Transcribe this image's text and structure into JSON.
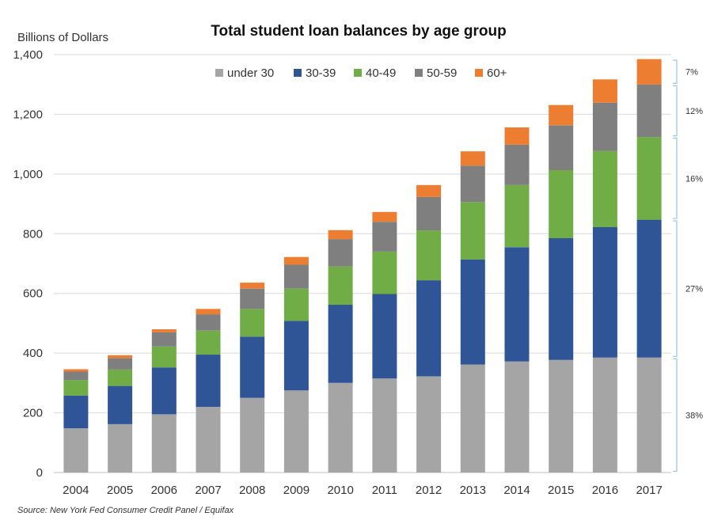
{
  "chart_data": {
    "type": "bar",
    "stacked": true,
    "title": "Total student loan balances by age group",
    "ylabel": "Billions of Dollars",
    "xlabel": "",
    "ylim": [
      0,
      1400
    ],
    "yticks": [
      0,
      200,
      400,
      600,
      800,
      1000,
      1200,
      1400
    ],
    "ytick_labels": [
      "0",
      "200",
      "400",
      "600",
      "800",
      "1,000",
      "1,200",
      "1,400"
    ],
    "grid": true,
    "legend_position": "top",
    "categories": [
      "2004",
      "2005",
      "2006",
      "2007",
      "2008",
      "2009",
      "2010",
      "2011",
      "2012",
      "2013",
      "2014",
      "2015",
      "2016",
      "2017"
    ],
    "series": [
      {
        "name": "under 30",
        "color": "#A5A5A5",
        "values": [
          148,
          162,
          195,
          220,
          250,
          275,
          300,
          315,
          322,
          362,
          372,
          377,
          385,
          385
        ]
      },
      {
        "name": "30-39",
        "color": "#2F5597",
        "values": [
          110,
          128,
          157,
          175,
          205,
          233,
          262,
          283,
          322,
          352,
          383,
          408,
          437,
          462
        ]
      },
      {
        "name": "40-49",
        "color": "#70AD47",
        "values": [
          52,
          55,
          70,
          80,
          93,
          108,
          128,
          142,
          167,
          192,
          208,
          228,
          255,
          277
        ]
      },
      {
        "name": "50-59",
        "color": "#7F7F7F",
        "values": [
          28,
          38,
          48,
          55,
          68,
          80,
          92,
          100,
          112,
          122,
          135,
          150,
          162,
          176
        ]
      },
      {
        "name": "60+",
        "color": "#ED7D31",
        "values": [
          8,
          10,
          10,
          18,
          20,
          26,
          30,
          33,
          40,
          48,
          58,
          68,
          78,
          85
        ]
      }
    ],
    "annotations": [
      {
        "label": "7%",
        "from": 1300,
        "to": 1385
      },
      {
        "label": "12%",
        "from": 1124,
        "to": 1300
      },
      {
        "label": "16%",
        "from": 847,
        "to": 1124
      },
      {
        "label": "27%",
        "from": 385,
        "to": 847
      },
      {
        "label": "38%",
        "from": 0,
        "to": 385
      }
    ],
    "source": "Source: New York Fed Consumer Credit Panel / Equifax"
  }
}
